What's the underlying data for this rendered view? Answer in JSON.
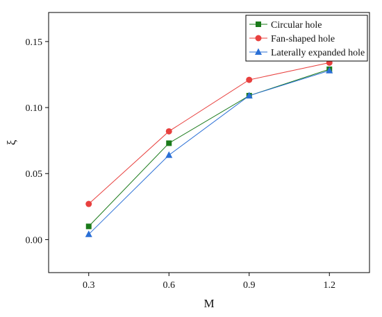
{
  "chart_data": {
    "type": "line",
    "xlabel": "M",
    "ylabel": "ξ",
    "x": [
      0.3,
      0.6,
      0.9,
      1.2
    ],
    "x_ticks": [
      "0.3",
      "0.6",
      "0.9",
      "1.2"
    ],
    "xlim": [
      0.15,
      1.35
    ],
    "ylim": [
      -0.025,
      0.172
    ],
    "y_ticks": [
      "0.00",
      "0.05",
      "0.10",
      "0.15"
    ],
    "y_tick_values": [
      0.0,
      0.05,
      0.1,
      0.15
    ],
    "grid": false,
    "legend_position": "top-right",
    "series": [
      {
        "name": "Circular hole",
        "values": [
          0.01,
          0.073,
          0.109,
          0.129
        ],
        "color": "#1a7a1a",
        "marker": "square"
      },
      {
        "name": "Fan-shaped hole",
        "values": [
          0.027,
          0.082,
          0.121,
          0.134
        ],
        "color": "#e8403e",
        "marker": "circle"
      },
      {
        "name": "Laterally expanded hole",
        "values": [
          0.004,
          0.064,
          0.109,
          0.128
        ],
        "color": "#2a6fd6",
        "marker": "triangle"
      }
    ]
  }
}
